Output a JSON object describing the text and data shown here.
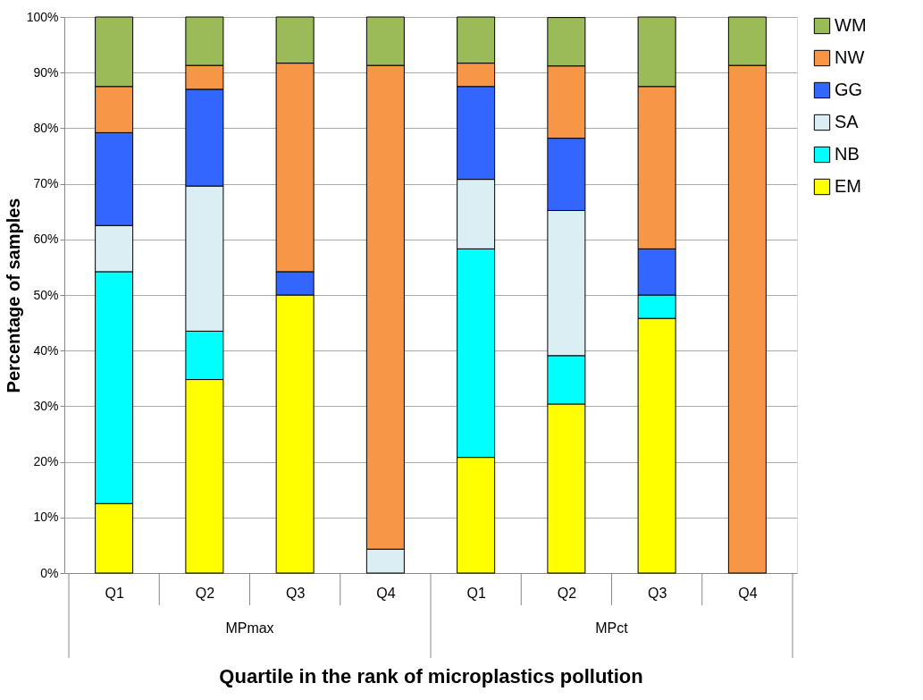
{
  "chart_data": {
    "type": "bar",
    "stacked": true,
    "xlabel": "Quartile in the rank of microplastics pollution",
    "ylabel": "Percentage of samples",
    "categories": [
      "Q1",
      "Q2",
      "Q3",
      "Q4",
      "Q1",
      "Q2",
      "Q3",
      "Q4"
    ],
    "annotations": [
      "MPmax",
      "MPct"
    ],
    "series": [
      {
        "name": "EM",
        "color": "#ffff00",
        "values": [
          12.5,
          34.8,
          50.0,
          null,
          20.8,
          30.4,
          45.8,
          null
        ]
      },
      {
        "name": "NB",
        "color": "#00ffff",
        "values": [
          41.7,
          8.7,
          null,
          null,
          37.5,
          8.7,
          4.2,
          null
        ]
      },
      {
        "name": "SA",
        "color": "#dbeef4",
        "values": [
          8.3,
          26.1,
          null,
          4.3,
          12.5,
          26.1,
          null,
          null
        ]
      },
      {
        "name": "GG",
        "color": "#3366ff",
        "values": [
          16.7,
          17.4,
          4.2,
          null,
          16.7,
          13.0,
          8.3,
          null
        ]
      },
      {
        "name": "NW",
        "color": "#f79646",
        "values": [
          8.3,
          4.3,
          37.5,
          87.0,
          4.2,
          13.0,
          29.2,
          91.3
        ]
      },
      {
        "name": "WM",
        "color": "#9bbb59",
        "values": [
          12.5,
          8.7,
          8.3,
          8.7,
          8.3,
          8.7,
          12.5,
          8.7
        ]
      }
    ],
    "ylim": [
      0,
      100
    ],
    "yticks": [
      {
        "value": 0,
        "label": "0%"
      },
      {
        "value": 10,
        "label": "10%"
      },
      {
        "value": 20,
        "label": "20%"
      },
      {
        "value": 30,
        "label": "30%"
      },
      {
        "value": 40,
        "label": "40%"
      },
      {
        "value": 50,
        "label": "50%"
      },
      {
        "value": 60,
        "label": "60%"
      },
      {
        "value": 70,
        "label": "70%"
      },
      {
        "value": 80,
        "label": "80%"
      },
      {
        "value": 90,
        "label": "90%"
      },
      {
        "value": 100,
        "label": "100%"
      }
    ],
    "grid": "y",
    "legend": "right"
  }
}
